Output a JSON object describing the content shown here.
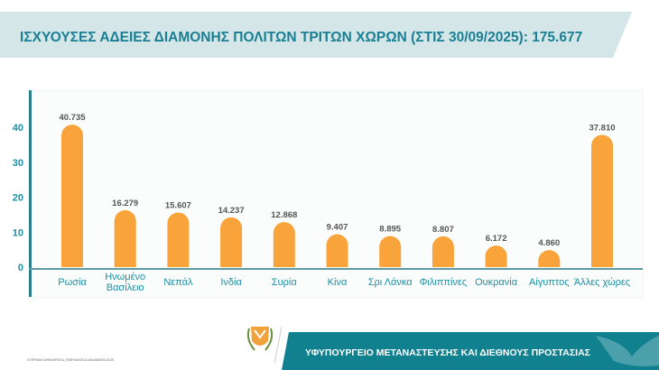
{
  "header": {
    "title": "ΙΣΧΥΟΥΣΕΣ ΑΔΕΙΕΣ ΔΙΑΜΟΝΗΣ ΠΟΛΙΤΩΝ ΤΡΙΤΩΝ ΧΩΡΩΝ (ΣΤΙΣ 30/09/2025): 175.677"
  },
  "footer": {
    "ministry": "ΥΦΥΠΟΥΡΓΕΙΟ ΜΕΤΑΝΑΣΤΕΥΣΗΣ ΚΑΙ ΔΙΕΘΝΟΥΣ ΠΡΟΣΤΑΣΙΑΣ",
    "copyright": "ΚΥΠΡΙΑΚΗ ΔΗΜΟΚΡΑΤΙΑ | ΠΝΕΥΜΑΤΙΚΑ ΔΙΚΑΙΩΜΑΤΑ 2025"
  },
  "colors": {
    "bar": "#f9a43a",
    "accent": "#1a7f93",
    "header_bg": "#d4e6e8",
    "footer_bg": "#11808f"
  },
  "chart_data": {
    "type": "bar",
    "categories": [
      "Ρωσία",
      "Ηνωμένο Βασίλειο",
      "Νεπάλ",
      "Ινδία",
      "Συρία",
      "Κίνα",
      "Σρι Λάνκα",
      "Φιλιππίνες",
      "Ουκρανία",
      "Αίγυπτος",
      "Άλλες χώρες"
    ],
    "values": [
      40.735,
      16.279,
      15.607,
      14.237,
      12.868,
      9.407,
      8.895,
      8.807,
      6.172,
      4.86,
      37.81
    ],
    "data_labels": [
      "40.735",
      "16.279",
      "15.607",
      "14.237",
      "12.868",
      "9.407",
      "8.895",
      "8.807",
      "6.172",
      "4.860",
      "37.810"
    ],
    "yticks": [
      "0",
      "10",
      "20",
      "30",
      "40"
    ],
    "ylim": [
      0,
      45
    ],
    "grid": false,
    "legend": "none"
  }
}
